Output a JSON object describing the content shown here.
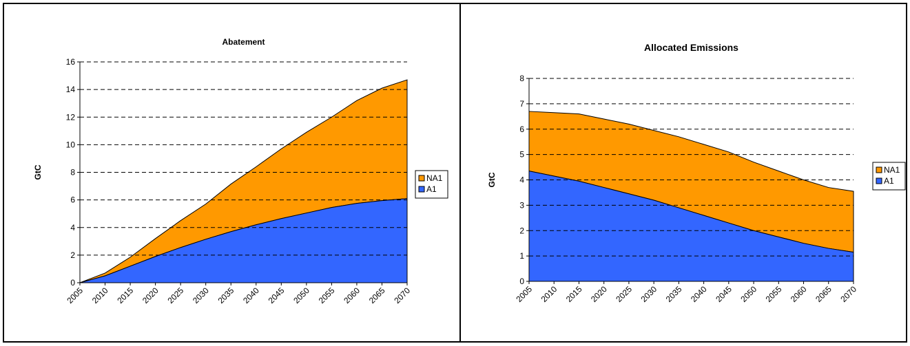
{
  "colors": {
    "NA1": "#FF9900",
    "A1": "#3366FF",
    "grid": "#000000",
    "outline": "#000000"
  },
  "chart_data": [
    {
      "type": "area",
      "stacked": true,
      "title": "Abatement",
      "xlabel": "",
      "ylabel": "GtC",
      "x": [
        "2005",
        "2010",
        "2015",
        "2020",
        "2025",
        "2030",
        "2035",
        "2040",
        "2045",
        "2050",
        "2055",
        "2060",
        "2065",
        "2070"
      ],
      "ylim": [
        0,
        16
      ],
      "yticks": [
        0,
        2,
        4,
        6,
        8,
        10,
        12,
        14,
        16
      ],
      "grid": "dashed horizontal",
      "legend": "right",
      "series": [
        {
          "name": "A1",
          "values": [
            0,
            0.5,
            1.2,
            1.9,
            2.55,
            3.15,
            3.7,
            4.2,
            4.65,
            5.05,
            5.45,
            5.75,
            5.95,
            6.1
          ]
        },
        {
          "name": "NA1",
          "values": [
            0,
            0.2,
            0.65,
            1.3,
            1.95,
            2.55,
            3.45,
            4.2,
            5.05,
            5.85,
            6.55,
            7.45,
            8.15,
            8.6
          ]
        }
      ]
    },
    {
      "type": "area",
      "stacked": true,
      "title": "Allocated Emissions",
      "xlabel": "",
      "ylabel": "GtC",
      "x": [
        "2005",
        "2010",
        "2015",
        "2020",
        "2025",
        "2030",
        "2035",
        "2040",
        "2045",
        "2050",
        "2055",
        "2060",
        "2065",
        "2070"
      ],
      "ylim": [
        0,
        8
      ],
      "yticks": [
        0,
        1,
        2,
        3,
        4,
        5,
        6,
        7,
        8
      ],
      "grid": "dashed horizontal",
      "legend": "right",
      "series": [
        {
          "name": "A1",
          "values": [
            4.35,
            4.15,
            3.95,
            3.7,
            3.45,
            3.2,
            2.9,
            2.6,
            2.3,
            2.0,
            1.75,
            1.5,
            1.3,
            1.15
          ]
        },
        {
          "name": "NA1",
          "values": [
            2.35,
            2.5,
            2.65,
            2.7,
            2.75,
            2.75,
            2.8,
            2.8,
            2.8,
            2.7,
            2.6,
            2.5,
            2.4,
            2.4
          ]
        }
      ]
    }
  ]
}
